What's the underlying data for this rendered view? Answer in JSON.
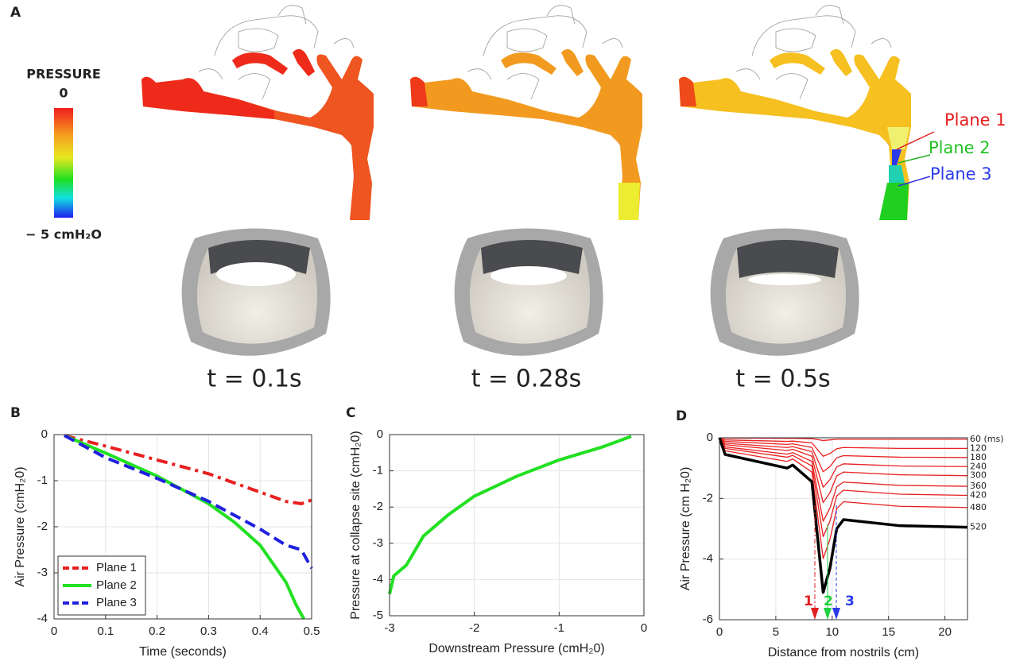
{
  "panel_a": {
    "label": "A",
    "colorbar": {
      "title": "PRESSURE",
      "max_label": "0",
      "min_label": "− 5 cmH₂O"
    },
    "planes": [
      "Plane 1",
      "Plane 2",
      "Plane 3"
    ],
    "times": [
      "t = 0.1s",
      "t = 0.28s",
      "t = 0.5s"
    ]
  },
  "chart_data": [
    {
      "type": "line",
      "label": "B",
      "x_label": "Time (seconds)",
      "y_label": "Air Pressure (cmH₂0)",
      "xlim": [
        0,
        0.5
      ],
      "xticks": [
        0,
        0.1,
        0.2,
        0.3,
        0.4,
        0.5
      ],
      "ylim": [
        -4,
        0
      ],
      "yticks": [
        -4,
        -3,
        -2,
        -1,
        0
      ],
      "grid": true,
      "legend": "lower left",
      "series": [
        {
          "name": "Plane 1",
          "color": "#e82020",
          "style": "dashdot",
          "x": [
            0.02,
            0.1,
            0.2,
            0.3,
            0.4,
            0.45,
            0.48,
            0.5
          ],
          "values": [
            -0.02,
            -0.25,
            -0.55,
            -0.85,
            -1.25,
            -1.45,
            -1.5,
            -1.42
          ]
        },
        {
          "name": "Plane 2",
          "color": "#22e022",
          "style": "solid",
          "x": [
            0.02,
            0.1,
            0.2,
            0.3,
            0.35,
            0.4,
            0.45,
            0.47,
            0.485
          ],
          "values": [
            -0.02,
            -0.4,
            -0.9,
            -1.5,
            -1.9,
            -2.4,
            -3.2,
            -3.7,
            -4.0
          ]
        },
        {
          "name": "Plane 3",
          "color": "#2020e0",
          "style": "dashed",
          "x": [
            0.02,
            0.1,
            0.2,
            0.3,
            0.4,
            0.45,
            0.48,
            0.5
          ],
          "values": [
            -0.02,
            -0.5,
            -0.95,
            -1.45,
            -2.05,
            -2.4,
            -2.5,
            -2.9
          ]
        }
      ]
    },
    {
      "type": "line",
      "label": "C",
      "x_label": "Downstream Pressure (cmH₂0)",
      "y_label": "Pressure at collapse site (cmH₂0)",
      "xlim": [
        -3,
        0
      ],
      "xticks": [
        -3,
        -2,
        -1,
        0
      ],
      "ylim": [
        -5,
        0
      ],
      "yticks": [
        -5,
        -4,
        -3,
        -2,
        -1,
        0
      ],
      "grid": true,
      "series": [
        {
          "color": "#22e022",
          "style": "solid",
          "x": [
            -3,
            -2.95,
            -2.9,
            -2.8,
            -2.6,
            -2.3,
            -2.0,
            -1.5,
            -1.0,
            -0.5,
            -0.15
          ],
          "values": [
            -4.4,
            -3.9,
            -3.8,
            -3.6,
            -2.8,
            -2.2,
            -1.7,
            -1.15,
            -0.7,
            -0.35,
            -0.05
          ]
        }
      ]
    },
    {
      "type": "line",
      "label": "D",
      "x_label": "Distance from nostrils (cm)",
      "y_label": "Air Pressure (cm H₂0)",
      "xlim": [
        0,
        22
      ],
      "xticks": [
        0,
        5,
        10,
        15,
        20
      ],
      "ylim": [
        -6,
        0
      ],
      "yticks": [
        -6,
        -4,
        -2,
        0
      ],
      "grid": true,
      "line_labels": true,
      "annotations": [
        "1",
        "2",
        "3"
      ],
      "x": [
        0,
        0.5,
        6,
        6.5,
        8.2,
        9.2,
        9.8,
        10.4,
        11,
        16,
        22
      ],
      "series": [
        {
          "name": "60 (ms)",
          "color": "#e82020",
          "style": "solid",
          "values": [
            0,
            -0.01,
            -0.02,
            -0.02,
            -0.03,
            -0.09,
            -0.07,
            -0.05,
            -0.05,
            -0.05,
            -0.05
          ]
        },
        {
          "name": "120",
          "color": "#e82020",
          "style": "solid",
          "values": [
            0,
            -0.07,
            -0.12,
            -0.11,
            -0.17,
            -0.61,
            -0.52,
            -0.36,
            -0.32,
            -0.35,
            -0.35
          ]
        },
        {
          "name": "180",
          "color": "#e82020",
          "style": "solid",
          "values": [
            0,
            -0.12,
            -0.22,
            -0.2,
            -0.32,
            -1.12,
            -0.95,
            -0.66,
            -0.59,
            -0.64,
            -0.65
          ]
        },
        {
          "name": "240",
          "color": "#e82020",
          "style": "solid",
          "values": [
            0,
            -0.18,
            -0.32,
            -0.29,
            -0.46,
            -1.63,
            -1.38,
            -0.96,
            -0.86,
            -0.93,
            -0.95
          ]
        },
        {
          "name": "300",
          "color": "#e82020",
          "style": "solid",
          "values": [
            0,
            -0.23,
            -0.42,
            -0.38,
            -0.61,
            -2.14,
            -1.81,
            -1.26,
            -1.13,
            -1.22,
            -1.25
          ]
        },
        {
          "name": "360",
          "color": "#e82020",
          "style": "solid",
          "values": [
            0,
            -0.3,
            -0.54,
            -0.49,
            -0.78,
            -2.75,
            -2.32,
            -1.62,
            -1.46,
            -1.57,
            -1.6
          ]
        },
        {
          "name": "420",
          "color": "#e82020",
          "style": "solid",
          "values": [
            0,
            -0.35,
            -0.64,
            -0.58,
            -0.93,
            -3.26,
            -2.75,
            -1.92,
            -1.73,
            -1.86,
            -1.9
          ]
        },
        {
          "name": "480",
          "color": "#e82020",
          "style": "solid",
          "values": [
            0,
            -0.43,
            -0.78,
            -0.7,
            -1.13,
            -3.98,
            -3.35,
            -2.34,
            -2.11,
            -2.26,
            -2.3
          ]
        },
        {
          "name": "520",
          "color": "#000000",
          "style": "bold",
          "values": [
            0,
            -0.55,
            -1.0,
            -0.9,
            -1.45,
            -5.1,
            -4.3,
            -3.0,
            -2.7,
            -2.9,
            -2.95
          ]
        }
      ]
    }
  ]
}
